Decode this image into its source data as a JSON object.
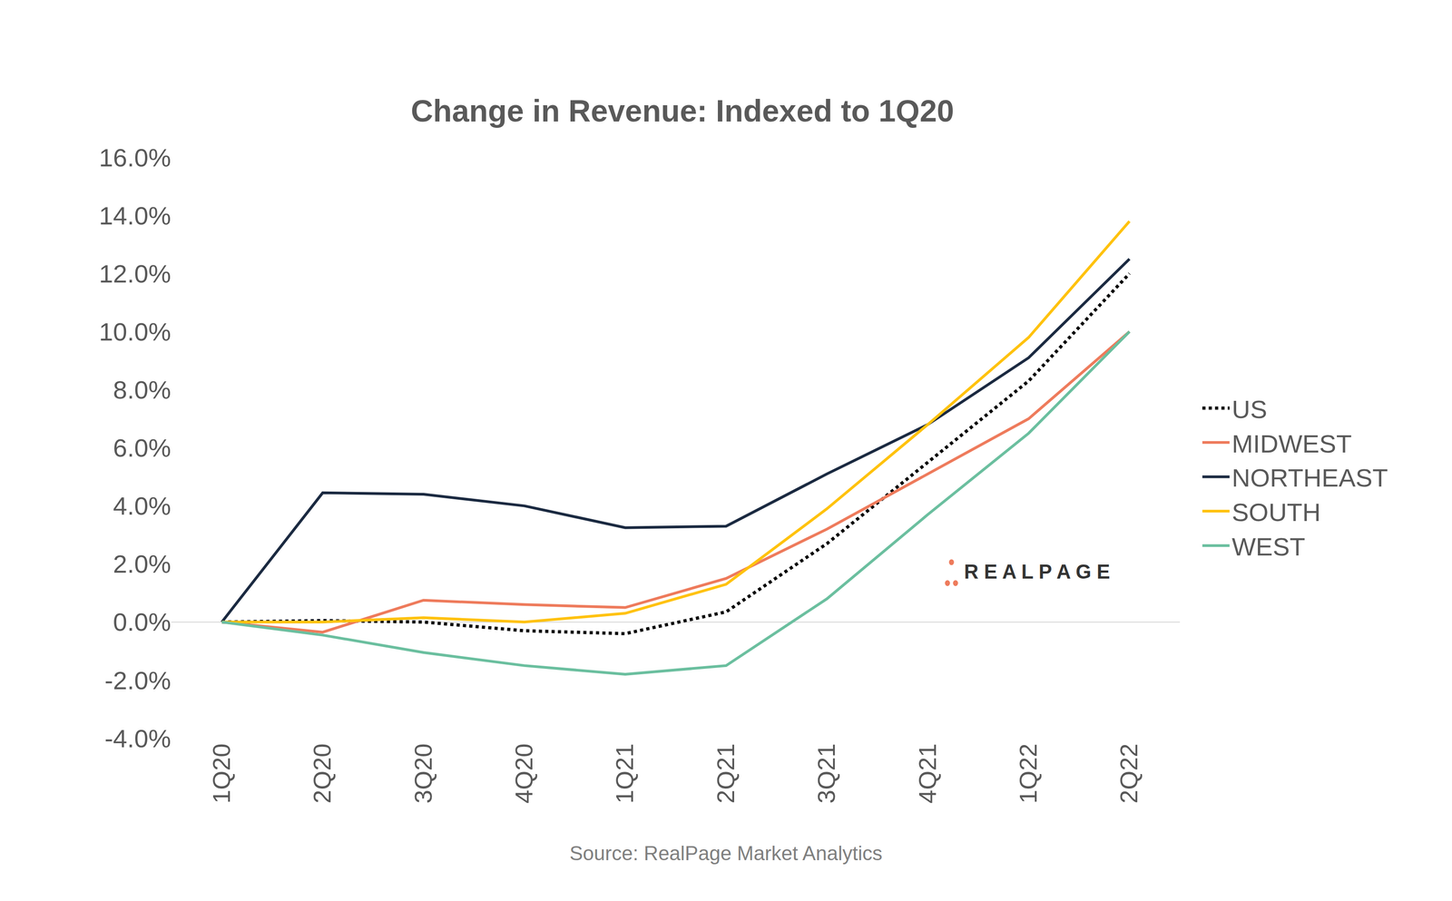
{
  "chart_data": {
    "type": "line",
    "title": "Change in Revenue: Indexed to 1Q20",
    "source": "Source: RealPage Market Analytics",
    "logo_text": "REALPAGE",
    "categories": [
      "1Q20",
      "2Q20",
      "3Q20",
      "4Q20",
      "1Q21",
      "2Q21",
      "3Q21",
      "4Q21",
      "1Q22",
      "2Q22"
    ],
    "series": [
      {
        "name": "US",
        "color": "#000000",
        "line_style": "dotted",
        "values": [
          0,
          0.05,
          0.0,
          -0.3,
          -0.4,
          0.35,
          2.7,
          5.5,
          8.3,
          12.0
        ]
      },
      {
        "name": "MIDWEST",
        "color": "#ee7b5c",
        "line_style": "solid",
        "values": [
          0,
          -0.35,
          0.75,
          0.6,
          0.5,
          1.5,
          3.2,
          5.1,
          7.0,
          10.0
        ]
      },
      {
        "name": "NORTHEAST",
        "color": "#1b2a41",
        "line_style": "solid",
        "values": [
          0,
          4.45,
          4.4,
          4.0,
          3.25,
          3.3,
          5.1,
          6.8,
          9.1,
          12.5
        ]
      },
      {
        "name": "SOUTH",
        "color": "#ffc20e",
        "line_style": "solid",
        "values": [
          0,
          0.0,
          0.15,
          0.0,
          0.3,
          1.3,
          3.9,
          6.8,
          9.8,
          13.8
        ]
      },
      {
        "name": "WEST",
        "color": "#6bbf9f",
        "line_style": "solid",
        "values": [
          0,
          -0.45,
          -1.05,
          -1.5,
          -1.8,
          -1.5,
          0.8,
          3.7,
          6.5,
          10.0
        ]
      }
    ],
    "ylim": [
      -4,
      16
    ],
    "yticks": [
      {
        "value": -4,
        "label": "-4.0%"
      },
      {
        "value": -2,
        "label": "-2.0%"
      },
      {
        "value": 0,
        "label": "0.0%"
      },
      {
        "value": 2,
        "label": "2.0%"
      },
      {
        "value": 4,
        "label": "4.0%"
      },
      {
        "value": 6,
        "label": "6.0%"
      },
      {
        "value": 8,
        "label": "8.0%"
      },
      {
        "value": 10,
        "label": "10.0%"
      },
      {
        "value": 12,
        "label": "12.0%"
      },
      {
        "value": 14,
        "label": "14.0%"
      },
      {
        "value": 16,
        "label": "16.0%"
      }
    ],
    "grid": false,
    "legend": "right"
  }
}
